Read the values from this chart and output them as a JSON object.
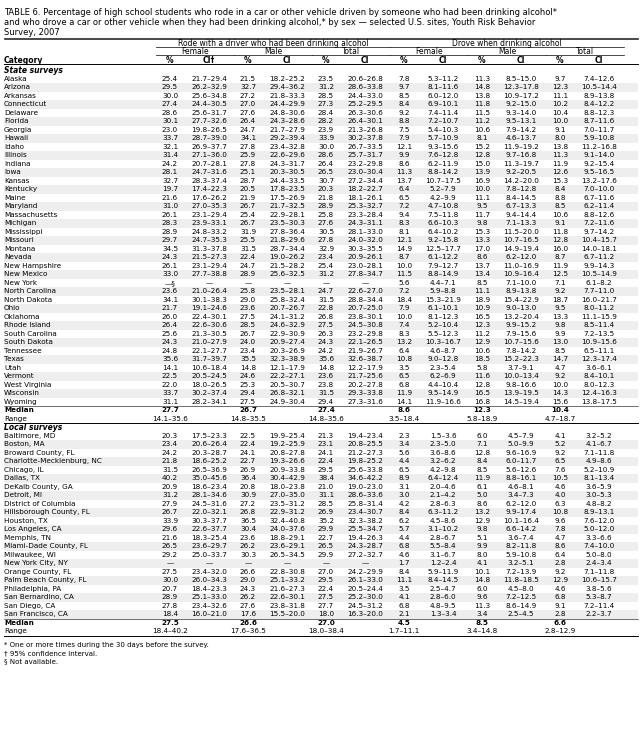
{
  "title_line1": "TABLE 6. Percentage of high school students who rode in a car or other vehicle driven by someone who had been drinking alcohol*",
  "title_line2": "and who drove a car or other vehicle when they had been drinking alcohol,* by sex — selected U.S. sites, Youth Risk Behavior",
  "title_line3": "Survey, 2007",
  "col_group1": "Rode with a driver who had been drinking alcohol",
  "col_group2": "Drove when drinking alcohol",
  "sub_cols": [
    "Female",
    "Male",
    "Total",
    "Female",
    "Male",
    "Total"
  ],
  "col_labels": [
    "Category",
    "%",
    "CI†",
    "%",
    "CI",
    "%",
    "CI",
    "%",
    "CI",
    "%",
    "CI",
    "%",
    "CI"
  ],
  "section1_label": "State surveys",
  "section2_label": "Local surveys",
  "rows_state": [
    [
      "Alaska",
      "25.4",
      "21.7–29.4",
      "21.5",
      "18.2–25.2",
      "23.5",
      "20.6–26.8",
      "7.8",
      "5.3–11.2",
      "11.3",
      "8.5–15.0",
      "9.7",
      "7.4–12.6"
    ],
    [
      "Arizona",
      "29.5",
      "26.2–32.9",
      "32.7",
      "29.4–36.2",
      "31.2",
      "28.6–33.8",
      "9.7",
      "8.1–11.6",
      "14.8",
      "12.3–17.8",
      "12.3",
      "10.5–14.4"
    ],
    [
      "Arkansas",
      "30.0",
      "25.6–34.8",
      "27.2",
      "21.8–33.3",
      "28.5",
      "24.4–33.0",
      "8.5",
      "6.0–12.0",
      "13.8",
      "10.9–17.2",
      "11.1",
      "8.9–13.8"
    ],
    [
      "Connecticut",
      "27.4",
      "24.4–30.5",
      "27.0",
      "24.4–29.9",
      "27.3",
      "25.2–29.5",
      "8.4",
      "6.9–10.1",
      "11.8",
      "9.2–15.0",
      "10.2",
      "8.4–12.2"
    ],
    [
      "Delaware",
      "28.6",
      "25.6–31.7",
      "27.6",
      "24.8–30.6",
      "28.4",
      "26.3–30.6",
      "9.2",
      "7.4–11.4",
      "11.5",
      "9.3–14.0",
      "10.4",
      "8.8–12.3"
    ],
    [
      "Florida",
      "30.1",
      "27.7–32.6",
      "26.4",
      "24.3–28.6",
      "28.2",
      "26.4–30.1",
      "8.8",
      "7.2–10.7",
      "11.2",
      "9.5–13.1",
      "10.0",
      "8.7–11.6"
    ],
    [
      "Georgia",
      "23.0",
      "19.8–26.5",
      "24.7",
      "21.7–27.9",
      "23.9",
      "21.3–26.8",
      "7.5",
      "5.4–10.3",
      "10.6",
      "7.9–14.2",
      "9.1",
      "7.0–11.7"
    ],
    [
      "Hawaii",
      "33.7",
      "28.7–39.0",
      "34.1",
      "29.2–39.4",
      "33.9",
      "30.2–37.8",
      "7.9",
      "5.7–10.9",
      "8.1",
      "4.6–13.7",
      "8.0",
      "5.9–10.8"
    ],
    [
      "Idaho",
      "32.1",
      "26.9–37.7",
      "27.8",
      "23.4–32.8",
      "30.0",
      "26.7–33.5",
      "12.1",
      "9.3–15.6",
      "15.2",
      "11.9–19.2",
      "13.8",
      "11.2–16.8"
    ],
    [
      "Illinois",
      "31.4",
      "27.1–36.0",
      "25.9",
      "22.6–29.6",
      "28.6",
      "25.7–31.7",
      "9.9",
      "7.6–12.8",
      "12.8",
      "9.7–16.8",
      "11.3",
      "9.1–14.0"
    ],
    [
      "Indiana",
      "24.2",
      "20.7–28.1",
      "27.8",
      "24.3–31.7",
      "26.4",
      "23.2–29.8",
      "8.6",
      "6.2–11.9",
      "15.0",
      "11.3–19.7",
      "11.9",
      "9.2–15.4"
    ],
    [
      "Iowa",
      "28.1",
      "24.7–31.6",
      "25.1",
      "20.3–30.5",
      "26.5",
      "23.0–30.4",
      "11.3",
      "8.8–14.2",
      "13.9",
      "9.2–20.5",
      "12.6",
      "9.5–16.5"
    ],
    [
      "Kansas",
      "32.7",
      "28.3–37.4",
      "28.7",
      "24.4–33.5",
      "30.7",
      "27.2–34.4",
      "13.7",
      "10.7–17.5",
      "16.9",
      "14.2–20.0",
      "15.3",
      "13.2–17.6"
    ],
    [
      "Kentucky",
      "19.7",
      "17.4–22.3",
      "20.5",
      "17.8–23.5",
      "20.3",
      "18.2–22.7",
      "6.4",
      "5.2–7.9",
      "10.0",
      "7.8–12.8",
      "8.4",
      "7.0–10.0"
    ],
    [
      "Maine",
      "21.6",
      "17.6–26.2",
      "21.9",
      "17.5–26.9",
      "21.8",
      "18.1–26.1",
      "6.5",
      "4.2–9.9",
      "11.1",
      "8.4–14.5",
      "8.8",
      "6.7–11.6"
    ],
    [
      "Maryland",
      "31.0",
      "27.0–35.3",
      "26.7",
      "21.7–32.5",
      "28.9",
      "25.3–32.7",
      "7.2",
      "4.7–10.8",
      "9.5",
      "6.7–13.3",
      "8.5",
      "6.2–11.4"
    ],
    [
      "Massachusetts",
      "26.1",
      "23.1–29.4",
      "25.4",
      "22.9–28.1",
      "25.8",
      "23.3–28.4",
      "9.4",
      "7.5–11.8",
      "11.7",
      "9.4–14.4",
      "10.6",
      "8.8–12.6"
    ],
    [
      "Michigan",
      "28.3",
      "23.9–33.1",
      "26.7",
      "23.5–30.3",
      "27.6",
      "24.3–31.1",
      "8.3",
      "6.6–10.3",
      "9.8",
      "7.1–13.3",
      "9.1",
      "7.2–11.6"
    ],
    [
      "Mississippi",
      "28.9",
      "24.8–33.2",
      "31.9",
      "27.8–36.4",
      "30.5",
      "28.1–33.0",
      "8.1",
      "6.4–10.2",
      "15.3",
      "11.5–20.0",
      "11.8",
      "9.7–14.2"
    ],
    [
      "Missouri",
      "29.7",
      "24.7–35.3",
      "25.5",
      "21.8–29.6",
      "27.8",
      "24.0–32.0",
      "12.1",
      "9.2–15.8",
      "13.3",
      "10.7–16.5",
      "12.8",
      "10.4–15.7"
    ],
    [
      "Montana",
      "34.5",
      "31.3–37.8",
      "31.5",
      "28.7–34.4",
      "32.9",
      "30.3–35.5",
      "14.9",
      "12.5–17.7",
      "17.0",
      "14.9–19.4",
      "16.0",
      "14.0–18.1"
    ],
    [
      "Nevada",
      "24.3",
      "21.5–27.3",
      "22.4",
      "19.0–26.2",
      "23.4",
      "20.9–26.1",
      "8.7",
      "6.1–12.2",
      "8.6",
      "6.2–12.0",
      "8.7",
      "6.7–11.2"
    ],
    [
      "New Hampshire",
      "26.1",
      "23.1–29.4",
      "24.7",
      "21.5–28.2",
      "25.4",
      "23.0–28.1",
      "10.0",
      "7.9–12.7",
      "13.7",
      "11.0–16.9",
      "11.9",
      "9.9–14.3"
    ],
    [
      "New Mexico",
      "33.0",
      "27.7–38.8",
      "28.9",
      "25.6–32.5",
      "31.2",
      "27.8–34.7",
      "11.5",
      "8.8–14.9",
      "13.4",
      "10.9–16.4",
      "12.5",
      "10.5–14.9"
    ],
    [
      "New York",
      "—§",
      "—",
      "—",
      "—",
      "—",
      "—",
      "5.6",
      "4.4–7.1",
      "8.5",
      "7.1–10.0",
      "7.1",
      "6.1–8.2"
    ],
    [
      "North Carolina",
      "23.6",
      "21.0–26.4",
      "25.8",
      "23.5–28.1",
      "24.7",
      "22.6–27.0",
      "7.2",
      "5.9–8.8",
      "11.1",
      "8.9–13.8",
      "9.2",
      "7.7–11.0"
    ],
    [
      "North Dakota",
      "34.1",
      "30.1–38.3",
      "29.0",
      "25.8–32.4",
      "31.5",
      "28.8–34.4",
      "18.4",
      "15.3–21.9",
      "18.9",
      "15.4–22.9",
      "18.7",
      "16.0–21.7"
    ],
    [
      "Ohio",
      "21.7",
      "19.1–24.6",
      "23.6",
      "20.7–26.7",
      "22.8",
      "20.7–25.0",
      "7.9",
      "6.1–10.1",
      "10.9",
      "9.0–13.0",
      "9.5",
      "8.0–11.2"
    ],
    [
      "Oklahoma",
      "26.0",
      "22.4–30.1",
      "27.5",
      "24.1–31.2",
      "26.8",
      "23.8–30.1",
      "10.0",
      "8.1–12.3",
      "16.5",
      "13.2–20.4",
      "13.3",
      "11.1–15.9"
    ],
    [
      "Rhode Island",
      "26.4",
      "22.6–30.6",
      "28.5",
      "24.6–32.9",
      "27.5",
      "24.5–30.8",
      "7.4",
      "5.2–10.4",
      "12.3",
      "9.9–15.2",
      "9.8",
      "8.5–11.4"
    ],
    [
      "South Carolina",
      "25.6",
      "21.3–30.5",
      "26.7",
      "22.9–30.9",
      "26.3",
      "23.2–29.8",
      "8.3",
      "5.5–12.3",
      "11.2",
      "7.9–15.6",
      "9.9",
      "7.2–13.5"
    ],
    [
      "South Dakota",
      "24.3",
      "21.0–27.9",
      "24.0",
      "20.9–27.4",
      "24.3",
      "22.1–26.5",
      "13.2",
      "10.3–16.7",
      "12.9",
      "10.7–15.6",
      "13.0",
      "10.9–15.6"
    ],
    [
      "Tennessee",
      "24.8",
      "22.1–27.7",
      "23.4",
      "20.3–26.9",
      "24.2",
      "21.9–26.7",
      "6.4",
      "4.6–8.7",
      "10.6",
      "7.8–14.2",
      "8.5",
      "6.5–11.1"
    ],
    [
      "Texas",
      "35.6",
      "31.7–39.7",
      "35.5",
      "32.3–38.9",
      "35.6",
      "32.6–38.7",
      "10.8",
      "9.0–12.8",
      "18.5",
      "15.2–22.3",
      "14.7",
      "12.3–17.4"
    ],
    [
      "Utah",
      "14.1",
      "10.6–18.4",
      "14.8",
      "12.1–17.9",
      "14.8",
      "12.2–17.9",
      "3.5",
      "2.3–5.4",
      "5.8",
      "3.7–9.1",
      "4.7",
      "3.6–6.1"
    ],
    [
      "Vermont",
      "22.5",
      "20.5–24.5",
      "24.6",
      "22.2–27.1",
      "23.6",
      "21.7–25.6",
      "6.5",
      "6.2–6.9",
      "11.6",
      "10.0–13.4",
      "9.2",
      "8.4–10.1"
    ],
    [
      "West Virginia",
      "22.0",
      "18.0–26.5",
      "25.3",
      "20.5–30.7",
      "23.8",
      "20.2–27.8",
      "6.8",
      "4.4–10.4",
      "12.8",
      "9.8–16.6",
      "10.0",
      "8.0–12.3"
    ],
    [
      "Wisconsin",
      "33.7",
      "30.2–37.4",
      "29.4",
      "26.8–32.1",
      "31.5",
      "29.3–33.8",
      "11.9",
      "9.5–14.9",
      "16.5",
      "13.9–19.5",
      "14.3",
      "12.4–16.3"
    ],
    [
      "Wyoming",
      "31.1",
      "28.2–34.1",
      "27.5",
      "24.9–30.4",
      "29.4",
      "27.3–31.6",
      "14.1",
      "11.9–16.6",
      "16.8",
      "14.5–19.4",
      "15.6",
      "13.8–17.5"
    ]
  ],
  "median_state": [
    "Median",
    "27.7",
    "",
    "26.7",
    "",
    "27.4",
    "",
    "8.6",
    "",
    "12.3",
    "",
    "10.4",
    ""
  ],
  "range_state": [
    "Range",
    "14.1–35.6",
    "",
    "14.8–35.5",
    "",
    "14.8–35.6",
    "",
    "3.5–18.4",
    "",
    "5.8–18.9",
    "",
    "4.7–18.7",
    ""
  ],
  "rows_local": [
    [
      "Baltimore, MD",
      "20.3",
      "17.5–23.3",
      "22.5",
      "19.9–25.4",
      "21.3",
      "19.4–23.4",
      "2.3",
      "1.5–3.6",
      "6.0",
      "4.5–7.9",
      "4.1",
      "3.2–5.2"
    ],
    [
      "Boston, MA",
      "23.4",
      "20.6–26.4",
      "22.4",
      "19.2–25.9",
      "23.1",
      "20.8–25.5",
      "3.4",
      "2.3–5.0",
      "7.1",
      "5.0–9.9",
      "5.2",
      "4.1–6.7"
    ],
    [
      "Broward County, FL",
      "24.2",
      "20.3–28.7",
      "24.1",
      "20.8–27.8",
      "24.1",
      "21.2–27.3",
      "5.6",
      "3.6–8.6",
      "12.8",
      "9.6–16.9",
      "9.2",
      "7.1–11.8"
    ],
    [
      "Charlotte-Mecklenburg, NC",
      "21.8",
      "18.6–25.2",
      "22.7",
      "19.3–26.6",
      "22.4",
      "19.8–25.2",
      "4.4",
      "3.2–6.2",
      "8.4",
      "6.0–11.7",
      "6.5",
      "4.9–8.6"
    ],
    [
      "Chicago, IL",
      "31.5",
      "26.5–36.9",
      "26.9",
      "20.9–33.8",
      "29.5",
      "25.6–33.8",
      "6.5",
      "4.2–9.8",
      "8.5",
      "5.6–12.6",
      "7.6",
      "5.2–10.9"
    ],
    [
      "Dallas, TX",
      "40.2",
      "35.0–45.6",
      "36.4",
      "30.4–42.9",
      "38.4",
      "34.6–42.2",
      "8.9",
      "6.4–12.4",
      "11.9",
      "8.8–16.1",
      "10.5",
      "8.1–13.4"
    ],
    [
      "DeKalb County, GA",
      "20.9",
      "18.6–23.4",
      "20.8",
      "18.0–23.8",
      "21.0",
      "19.0–23.0",
      "3.1",
      "2.0–4.6",
      "6.1",
      "4.6–8.1",
      "4.6",
      "3.6–5.9"
    ],
    [
      "Detroit, MI",
      "31.2",
      "28.1–34.6",
      "30.9",
      "27.0–35.0",
      "31.1",
      "28.6–33.6",
      "3.0",
      "2.1–4.2",
      "5.0",
      "3.4–7.3",
      "4.0",
      "3.0–5.3"
    ],
    [
      "District of Columbia",
      "27.9",
      "24.5–31.6",
      "27.2",
      "23.5–31.2",
      "28.5",
      "25.8–31.4",
      "4.2",
      "2.8–6.3",
      "8.6",
      "6.2–12.0",
      "6.3",
      "4.8–8.2"
    ],
    [
      "Hillsborough County, FL",
      "26.7",
      "22.0–32.1",
      "26.8",
      "22.9–31.2",
      "26.9",
      "23.4–30.7",
      "8.4",
      "6.3–11.2",
      "13.2",
      "9.9–17.4",
      "10.8",
      "8.9–13.1"
    ],
    [
      "Houston, TX",
      "33.9",
      "30.3–37.7",
      "36.5",
      "32.4–40.8",
      "35.2",
      "32.3–38.2",
      "6.2",
      "4.5–8.6",
      "12.9",
      "10.1–16.4",
      "9.6",
      "7.6–12.0"
    ],
    [
      "Los Angeles, CA",
      "29.6",
      "22.6–37.7",
      "30.4",
      "24.0–37.6",
      "29.9",
      "25.5–34.7",
      "5.7",
      "3.1–10.2",
      "9.8",
      "6.6–14.2",
      "7.8",
      "5.0–12.0"
    ],
    [
      "Memphis, TN",
      "21.6",
      "18.3–25.4",
      "23.6",
      "18.8–29.1",
      "22.7",
      "19.4–26.3",
      "4.4",
      "2.8–6.7",
      "5.1",
      "3.6–7.4",
      "4.7",
      "3.3–6.6"
    ],
    [
      "Miami-Dade County, FL",
      "26.5",
      "23.6–29.7",
      "26.2",
      "23.6–29.1",
      "26.5",
      "24.3–28.7",
      "6.8",
      "5.5–8.4",
      "9.9",
      "8.2–11.8",
      "8.6",
      "7.4–10.0"
    ],
    [
      "Milwaukee, WI",
      "29.2",
      "25.0–33.7",
      "30.3",
      "26.5–34.5",
      "29.9",
      "27.2–32.7",
      "4.6",
      "3.1–6.7",
      "8.0",
      "5.9–10.8",
      "6.4",
      "5.0–8.0"
    ],
    [
      "New York City, NY",
      "—",
      "—",
      "—",
      "—",
      "—",
      "—",
      "1.7",
      "1.2–2.4",
      "4.1",
      "3.2–5.1",
      "2.8",
      "2.4–3.4"
    ],
    [
      "Orange County, FL",
      "27.5",
      "23.4–32.0",
      "26.6",
      "22.8–30.8",
      "27.0",
      "24.2–29.9",
      "8.4",
      "5.9–11.9",
      "10.1",
      "7.2–13.9",
      "9.2",
      "7.1–11.8"
    ],
    [
      "Palm Beach County, FL",
      "30.0",
      "26.0–34.3",
      "29.0",
      "25.1–33.2",
      "29.5",
      "26.1–33.0",
      "11.1",
      "8.4–14.5",
      "14.8",
      "11.8–18.5",
      "12.9",
      "10.6–15.7"
    ],
    [
      "Philadelphia, PA",
      "20.7",
      "18.4–23.3",
      "24.3",
      "21.6–27.3",
      "22.4",
      "20.5–24.4",
      "3.5",
      "2.5–4.7",
      "6.0",
      "4.5–8.0",
      "4.6",
      "3.8–5.6"
    ],
    [
      "San Bernardino, CA",
      "28.9",
      "25.1–33.0",
      "26.2",
      "22.6–30.1",
      "27.5",
      "25.2–30.0",
      "4.1",
      "2.8–6.0",
      "9.6",
      "7.2–12.5",
      "6.8",
      "5.3–8.7"
    ],
    [
      "San Diego, CA",
      "27.8",
      "23.4–32.6",
      "27.6",
      "23.8–31.8",
      "27.7",
      "24.5–31.2",
      "6.8",
      "4.8–9.5",
      "11.3",
      "8.6–14.9",
      "9.1",
      "7.2–11.4"
    ],
    [
      "San Francisco, CA",
      "18.4",
      "16.0–21.0",
      "17.6",
      "15.5–20.0",
      "18.0",
      "16.3–20.0",
      "2.1",
      "1.3–3.4",
      "3.4",
      "2.5–4.5",
      "2.8",
      "2.2–3.7"
    ]
  ],
  "median_local": [
    "Median",
    "27.5",
    "",
    "26.6",
    "",
    "27.0",
    "",
    "4.5",
    "",
    "8.5",
    "",
    "6.6",
    ""
  ],
  "range_local": [
    "Range",
    "18.4–40.2",
    "",
    "17.6–36.5",
    "",
    "18.0–38.4",
    "",
    "1.7–11.1",
    "",
    "3.4–14.8",
    "",
    "2.8–12.9",
    ""
  ],
  "footnotes": [
    "* One or more times during the 30 days before the survey.",
    "† 95% confidence interval.",
    "§ Not available."
  ]
}
